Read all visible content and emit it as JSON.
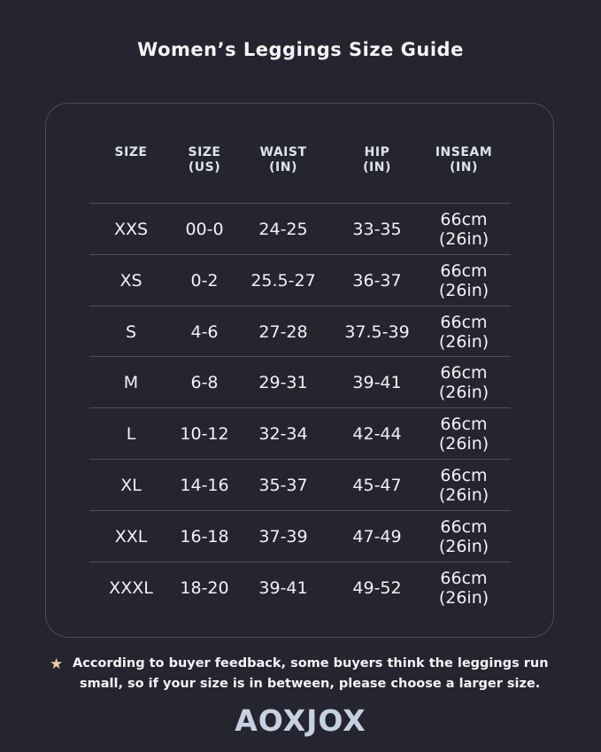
{
  "title": "Women’s Leggings Size Guide",
  "table": {
    "headers": [
      {
        "line1": "SIZE",
        "line2": ""
      },
      {
        "line1": "SIZE",
        "line2": "(US)"
      },
      {
        "line1": "WAIST",
        "line2": "(IN)"
      },
      {
        "line1": "HIP",
        "line2": "(IN)"
      },
      {
        "line1": "INSEAM",
        "line2": "(IN)"
      }
    ],
    "rows": [
      {
        "size": "XXS",
        "us": "00-0",
        "waist": "24-25",
        "hip": "33-35",
        "inseam1": "66cm",
        "inseam2": "(26in)"
      },
      {
        "size": "XS",
        "us": "0-2",
        "waist": "25.5-27",
        "hip": "36-37",
        "inseam1": "66cm",
        "inseam2": "(26in)"
      },
      {
        "size": "S",
        "us": "4-6",
        "waist": "27-28",
        "hip": "37.5-39",
        "inseam1": "66cm",
        "inseam2": "(26in)"
      },
      {
        "size": "M",
        "us": "6-8",
        "waist": "29-31",
        "hip": "39-41",
        "inseam1": "66cm",
        "inseam2": "(26in)"
      },
      {
        "size": "L",
        "us": "10-12",
        "waist": "32-34",
        "hip": "42-44",
        "inseam1": "66cm",
        "inseam2": "(26in)"
      },
      {
        "size": "XL",
        "us": "14-16",
        "waist": "35-37",
        "hip": "45-47",
        "inseam1": "66cm",
        "inseam2": "(26in)"
      },
      {
        "size": "XXL",
        "us": "16-18",
        "waist": "37-39",
        "hip": "47-49",
        "inseam1": "66cm",
        "inseam2": "(26in)"
      },
      {
        "size": "XXXL",
        "us": "18-20",
        "waist": "39-41",
        "hip": "49-52",
        "inseam1": "66cm",
        "inseam2": "(26in)"
      }
    ]
  },
  "note": {
    "icon": "star-icon",
    "line1": "According to buyer feedback, some buyers think the leggings run",
    "line2": "small, so if your size is in between, please choose a larger size."
  },
  "brand": "AOXJOX",
  "colors": {
    "background": "#24252e",
    "star": "#f3c9a8",
    "logo": "#c6d1e0"
  }
}
